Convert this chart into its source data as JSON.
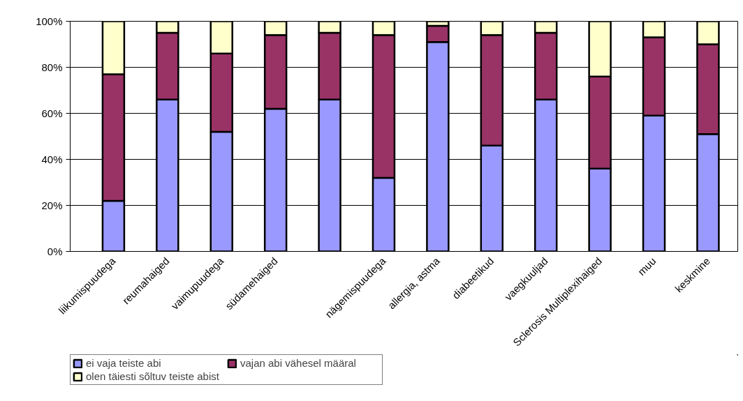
{
  "chart_data": {
    "type": "bar",
    "stacked": true,
    "categories": [
      "liikumispuudega",
      "reumahaiged",
      "vaimupuudega",
      "südamehaiged",
      null,
      "nägemispuudega",
      "allergia, astma",
      "diabeetikud",
      "vaegkuuljad",
      "Sclerosis Multiplexihaiged",
      "muu",
      "keskmine"
    ],
    "series": [
      {
        "name": "ei vaja teiste abi",
        "color": "#9999ff",
        "values": [
          22,
          66,
          52,
          62,
          66,
          32,
          91,
          46,
          66,
          36,
          59,
          51
        ]
      },
      {
        "name": "vajan abi vähesel määral",
        "color": "#993366",
        "values": [
          55,
          29,
          34,
          32,
          29,
          62,
          7,
          48,
          29,
          40,
          34,
          39
        ]
      },
      {
        "name": "olen täiesti sõltuv teiste abist",
        "color": "#ffffcc",
        "values": [
          23,
          5,
          14,
          6,
          5,
          6,
          2,
          6,
          5,
          24,
          7,
          10
        ]
      }
    ],
    "ylim": [
      0,
      100
    ],
    "yticks": [
      {
        "value": 0,
        "label": "0%"
      },
      {
        "value": 20,
        "label": "20%"
      },
      {
        "value": 40,
        "label": "40%"
      },
      {
        "value": 60,
        "label": "60%"
      },
      {
        "value": 80,
        "label": "80%"
      },
      {
        "value": 100,
        "label": "100%"
      }
    ],
    "grid": "y",
    "legend": "bottom left"
  }
}
